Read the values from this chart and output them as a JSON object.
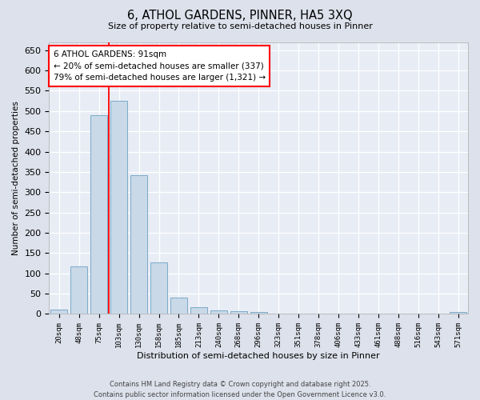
{
  "title": "6, ATHOL GARDENS, PINNER, HA5 3XQ",
  "subtitle": "Size of property relative to semi-detached houses in Pinner",
  "xlabel": "Distribution of semi-detached houses by size in Pinner",
  "ylabel": "Number of semi-detached properties",
  "categories": [
    "20sqm",
    "48sqm",
    "75sqm",
    "103sqm",
    "130sqm",
    "158sqm",
    "185sqm",
    "213sqm",
    "240sqm",
    "268sqm",
    "296sqm",
    "323sqm",
    "351sqm",
    "378sqm",
    "406sqm",
    "433sqm",
    "461sqm",
    "488sqm",
    "516sqm",
    "543sqm",
    "571sqm"
  ],
  "values": [
    10,
    118,
    490,
    525,
    342,
    127,
    40,
    17,
    8,
    7,
    4,
    1,
    0,
    0,
    0,
    0,
    0,
    0,
    0,
    0,
    4
  ],
  "bar_color": "#c9d9e8",
  "bar_edge_color": "#7aaac8",
  "vline_x": 2.5,
  "vline_color": "red",
  "annotation_text": "6 ATHOL GARDENS: 91sqm\n← 20% of semi-detached houses are smaller (337)\n79% of semi-detached houses are larger (1,321) →",
  "annotation_box_color": "white",
  "annotation_box_edge": "red",
  "ylim": [
    0,
    670
  ],
  "yticks": [
    0,
    50,
    100,
    150,
    200,
    250,
    300,
    350,
    400,
    450,
    500,
    550,
    600,
    650
  ],
  "footer_line1": "Contains HM Land Registry data © Crown copyright and database right 2025.",
  "footer_line2": "Contains public sector information licensed under the Open Government Licence v3.0.",
  "bg_color": "#dde1eb",
  "plot_bg_color": "#e8ecf5"
}
